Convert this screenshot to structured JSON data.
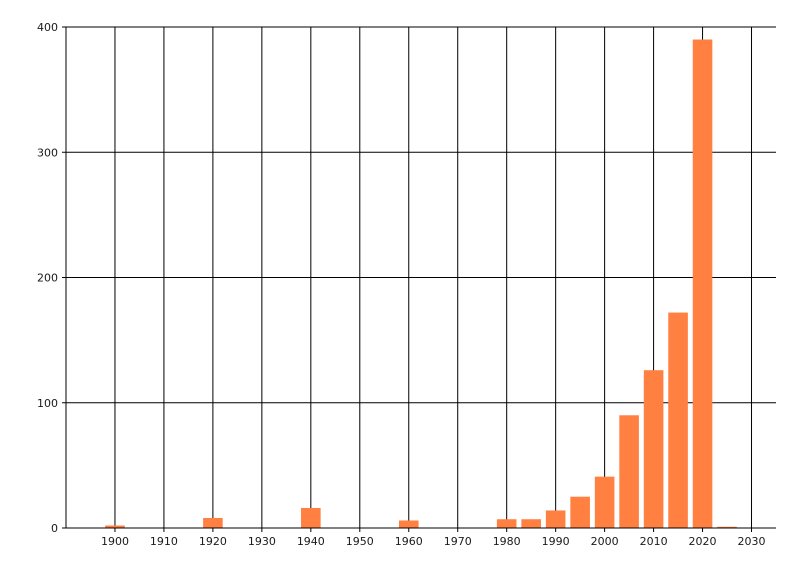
{
  "chart_data": {
    "type": "bar",
    "title": "",
    "xlabel": "",
    "ylabel": "",
    "x": [
      1900,
      1920,
      1940,
      1960,
      1980,
      1985,
      1990,
      1995,
      2000,
      2005,
      2010,
      2015,
      2020,
      2025
    ],
    "values": [
      2,
      8,
      16,
      6,
      7,
      7,
      14,
      25,
      41,
      90,
      126,
      172,
      390,
      1
    ],
    "xlim": [
      1890,
      2035
    ],
    "ylim": [
      0,
      400
    ],
    "x_ticks": [
      1900,
      1910,
      1920,
      1930,
      1940,
      1950,
      1960,
      1970,
      1980,
      1990,
      2000,
      2010,
      2020,
      2030
    ],
    "y_ticks": [
      0,
      100,
      200,
      300,
      400
    ],
    "grid": true,
    "bar_color": "#FF8040",
    "grid_color": "#000000"
  }
}
